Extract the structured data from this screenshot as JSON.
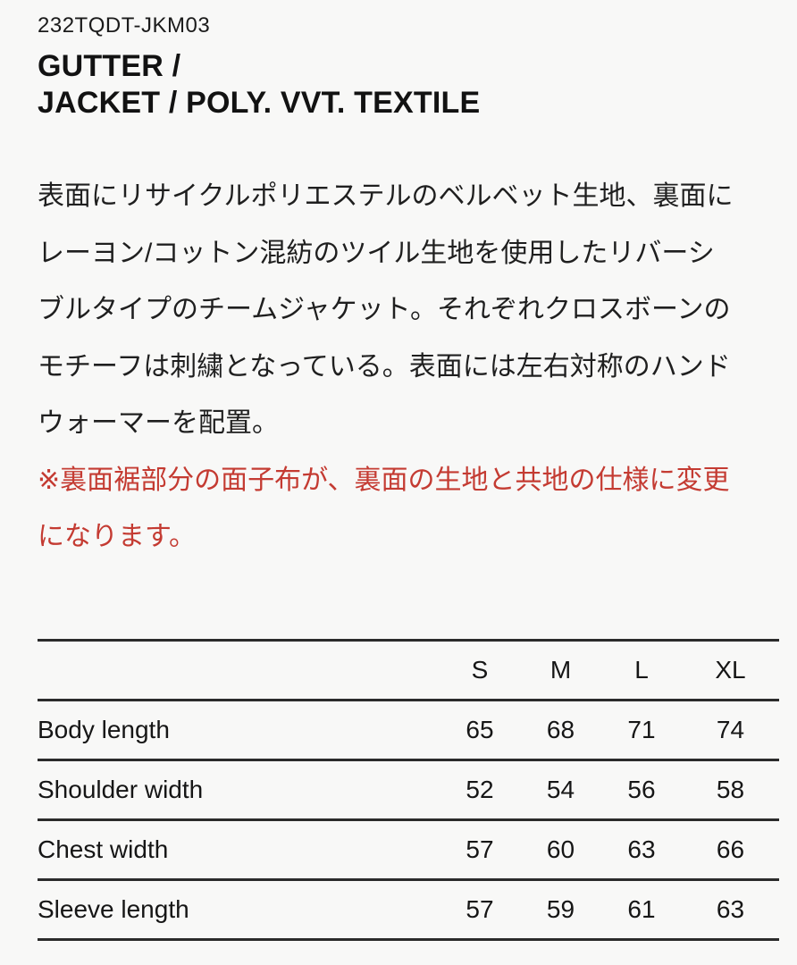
{
  "product": {
    "code": "232TQDT-JKM03",
    "title_lines": [
      "GUTTER /",
      "JACKET / POLY. VVT. TEXTILE"
    ]
  },
  "description": {
    "lines": [
      "表面にリサイクルポリエステルのベルベット生地、裏面に",
      "レーヨン/コットン混紡のツイル生地を使用したリバーシ",
      "ブルタイプのチームジャケット。それぞれクロスボーンの",
      "モチーフは刺繍となっている。表面には左右対称のハンド",
      "ウォーマーを配置。"
    ]
  },
  "spec_note": {
    "lines": [
      "※裏面裾部分の面子布が、裏面の生地と共地の仕様に変更",
      "になります。"
    ]
  },
  "size_table": {
    "headers": [
      "S",
      "M",
      "L",
      "XL"
    ],
    "rows": [
      {
        "label": "Body length",
        "values": [
          "65",
          "68",
          "71",
          "74"
        ]
      },
      {
        "label": "Shoulder width",
        "values": [
          "52",
          "54",
          "56",
          "58"
        ]
      },
      {
        "label": "Chest width",
        "values": [
          "57",
          "60",
          "63",
          "66"
        ]
      },
      {
        "label": "Sleeve length",
        "values": [
          "57",
          "59",
          "61",
          "63"
        ]
      }
    ]
  },
  "colors": {
    "text": "#1d1d1d",
    "note_red": "#c43b32",
    "table_border": "#2b2b2b",
    "background": "#f8f8f7"
  }
}
